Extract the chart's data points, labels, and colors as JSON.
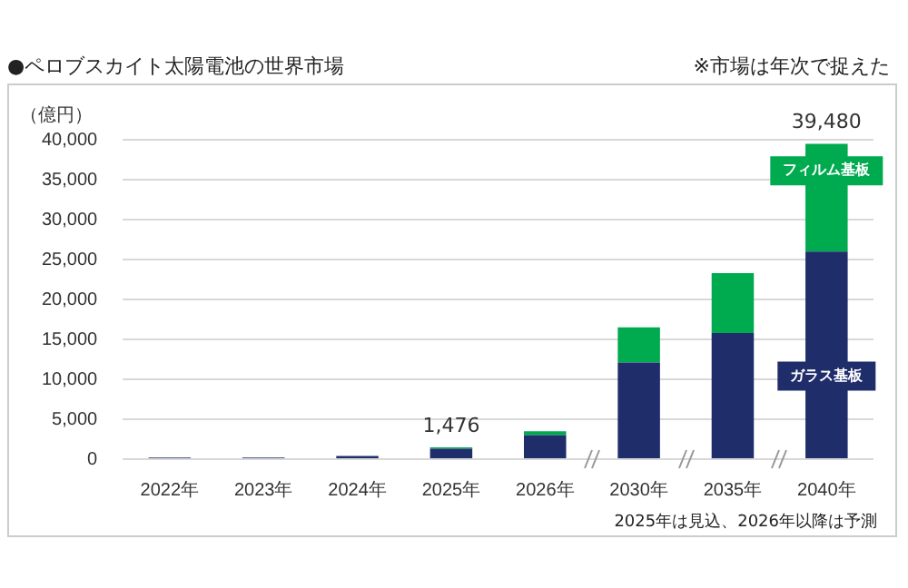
{
  "chart_data": {
    "type": "bar",
    "title": "●ペロブスカイト太陽電池の世界市場",
    "ylabel": "（億円）",
    "categories": [
      "2022年",
      "2023年",
      "2024年",
      "2025年",
      "2026年",
      "2030年",
      "2035年",
      "2040年"
    ],
    "stacked": true,
    "series": [
      {
        "name": "ガラス基板",
        "color": "#1f2d6b",
        "values": [
          200,
          200,
          400,
          1300,
          3000,
          12100,
          15800,
          26000
        ]
      },
      {
        "name": "フィルム基板",
        "color": "#00aa4f",
        "values": [
          0,
          0,
          0,
          176,
          500,
          4400,
          7500,
          13480
        ]
      }
    ],
    "totals": [
      null,
      null,
      null,
      "1,476",
      null,
      null,
      null,
      "39,480"
    ],
    "ylim": [
      0,
      40000
    ],
    "yticks": [
      {
        "value": 0,
        "label": "0"
      },
      {
        "value": 5000,
        "label": "5,000"
      },
      {
        "value": 10000,
        "label": "10,000"
      },
      {
        "value": 15000,
        "label": "15,000"
      },
      {
        "value": 20000,
        "label": "20,000"
      },
      {
        "value": 25000,
        "label": "25,000"
      },
      {
        "value": 30000,
        "label": "30,000"
      },
      {
        "value": 35000,
        "label": "35,000"
      },
      {
        "value": 40000,
        "label": "40,000"
      }
    ],
    "grid": "y",
    "legend": false,
    "annotations": [
      "※市場は年次で捉えた",
      "2025年は見込、2026年以降は予測"
    ]
  }
}
